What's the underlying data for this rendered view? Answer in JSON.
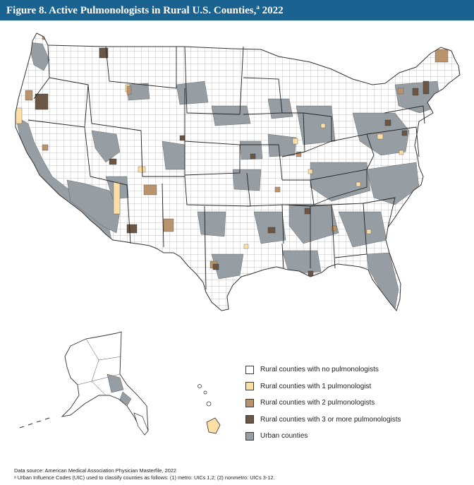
{
  "title": {
    "prefix": "Figure 8. Active Pulmonologists in Rural U.S. Counties,",
    "sup": "a",
    "suffix": " 2022"
  },
  "colors": {
    "header": "#1a6391",
    "rural_none": "#ffffff",
    "rural_one": "#fddfa6",
    "rural_two": "#b9936c",
    "rural_three_plus": "#6b5545",
    "urban": "#969ea3",
    "border": "#333333"
  },
  "legend": [
    {
      "label": "Rural counties with no pulmonologists",
      "color": "#ffffff"
    },
    {
      "label": "Rural counties with 1 pulmonologist",
      "color": "#fddfa6"
    },
    {
      "label": "Rural counties with 2 pulmonologists",
      "color": "#b9936c"
    },
    {
      "label": "Rural counties with 3 or more pulmonologists",
      "color": "#6b5545"
    },
    {
      "label": "Urban counties",
      "color": "#969ea3"
    }
  ],
  "footer": {
    "source": "Data source: American Medical Association Physician Masterfile, 2022",
    "note": "ᵃ Urban Influence Codes (UIC) used to classify counties as follows: (1) metro: UICs 1,2; (2) nonmetro: UICs 3-12."
  }
}
